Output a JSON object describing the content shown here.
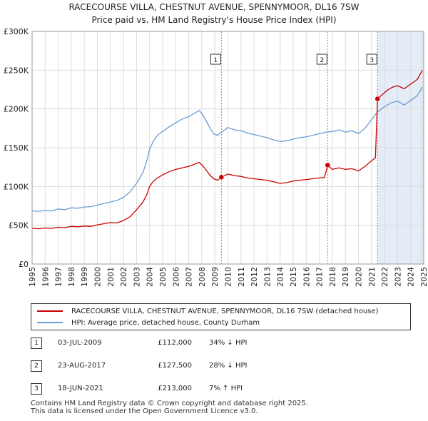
{
  "title": {
    "line1": "RACECOURSE VILLA, CHESTNUT AVENUE, SPENNYMOOR, DL16 7SW",
    "line2": "Price paid vs. HM Land Registry's House Price Index (HPI)"
  },
  "colors": {
    "property": "#cc0000",
    "hpi": "#6a9bd2",
    "shade": "#e4ecf8",
    "grid": "#dddddd",
    "hatch": "#bbbbbb",
    "marker_line": "#e06666"
  },
  "chart_data": {
    "type": "line",
    "title": "Price paid vs. HM Land Registry's House Price Index (HPI)",
    "xlabel": "",
    "ylabel": "",
    "xlim": [
      1995,
      2025
    ],
    "ylim": [
      0,
      300000
    ],
    "y_ticks": [
      {
        "value": 0,
        "label": "£0"
      },
      {
        "value": 50000,
        "label": "£50K"
      },
      {
        "value": 100000,
        "label": "£100K"
      },
      {
        "value": 150000,
        "label": "£150K"
      },
      {
        "value": 200000,
        "label": "£200K"
      },
      {
        "value": 250000,
        "label": "£250K"
      },
      {
        "value": 300000,
        "label": "£300K"
      }
    ],
    "x_ticks": [
      "1995",
      "1996",
      "1997",
      "1998",
      "1999",
      "2000",
      "2001",
      "2002",
      "2003",
      "2004",
      "2005",
      "2006",
      "2007",
      "2008",
      "2009",
      "2010",
      "2011",
      "2012",
      "2013",
      "2014",
      "2015",
      "2016",
      "2017",
      "2018",
      "2019",
      "2020",
      "2021",
      "2022",
      "2023",
      "2024",
      "2025"
    ],
    "grid": true,
    "series": [
      {
        "name": "RACECOURSE VILLA, CHESTNUT AVENUE, SPENNYMOOR, DL16 7SW (detached house)",
        "key": "property",
        "points": [
          [
            1995.0,
            46000
          ],
          [
            1995.5,
            45500
          ],
          [
            1996.0,
            46500
          ],
          [
            1996.5,
            46000
          ],
          [
            1997.0,
            47500
          ],
          [
            1997.5,
            46800
          ],
          [
            1998.0,
            48500
          ],
          [
            1998.5,
            48000
          ],
          [
            1999.0,
            49000
          ],
          [
            1999.5,
            48500
          ],
          [
            2000.0,
            50500
          ],
          [
            2000.5,
            52000
          ],
          [
            2001.0,
            53500
          ],
          [
            2001.5,
            53000
          ],
          [
            2002.0,
            56000
          ],
          [
            2002.5,
            61000
          ],
          [
            2003.0,
            70000
          ],
          [
            2003.5,
            80000
          ],
          [
            2003.8,
            90000
          ],
          [
            2004.0,
            100000
          ],
          [
            2004.3,
            107000
          ],
          [
            2004.6,
            111000
          ],
          [
            2005.0,
            115000
          ],
          [
            2005.5,
            119000
          ],
          [
            2006.0,
            122000
          ],
          [
            2006.5,
            124000
          ],
          [
            2007.0,
            126000
          ],
          [
            2007.5,
            129000
          ],
          [
            2007.8,
            131000
          ],
          [
            2008.0,
            128000
          ],
          [
            2008.3,
            122000
          ],
          [
            2008.6,
            115000
          ],
          [
            2008.9,
            110000
          ],
          [
            2009.2,
            108000
          ],
          [
            2009.5,
            112000
          ],
          [
            2010.0,
            116000
          ],
          [
            2010.5,
            114000
          ],
          [
            2011.0,
            113000
          ],
          [
            2011.5,
            111000
          ],
          [
            2012.0,
            110000
          ],
          [
            2012.5,
            109000
          ],
          [
            2013.0,
            108000
          ],
          [
            2013.5,
            106000
          ],
          [
            2014.0,
            104000
          ],
          [
            2014.5,
            105000
          ],
          [
            2015.0,
            107000
          ],
          [
            2015.5,
            108000
          ],
          [
            2016.0,
            109000
          ],
          [
            2016.5,
            110000
          ],
          [
            2017.0,
            111000
          ],
          [
            2017.4,
            111500
          ],
          [
            2017.64,
            127500
          ],
          [
            2018.0,
            122000
          ],
          [
            2018.5,
            124000
          ],
          [
            2019.0,
            122000
          ],
          [
            2019.5,
            123000
          ],
          [
            2020.0,
            120000
          ],
          [
            2020.5,
            126000
          ],
          [
            2021.0,
            133000
          ],
          [
            2021.3,
            137000
          ],
          [
            2021.46,
            213000
          ],
          [
            2021.8,
            218000
          ],
          [
            2022.2,
            224000
          ],
          [
            2022.6,
            228000
          ],
          [
            2023.0,
            230000
          ],
          [
            2023.5,
            226000
          ],
          [
            2024.0,
            232000
          ],
          [
            2024.5,
            238000
          ],
          [
            2024.9,
            250000
          ]
        ]
      },
      {
        "name": "HPI: Average price, detached house, County Durham",
        "key": "hpi",
        "points": [
          [
            1995.0,
            68500
          ],
          [
            1995.5,
            68000
          ],
          [
            1996.0,
            69000
          ],
          [
            1996.5,
            68500
          ],
          [
            1997.0,
            71000
          ],
          [
            1997.5,
            70000
          ],
          [
            1998.0,
            72500
          ],
          [
            1998.5,
            72000
          ],
          [
            1999.0,
            73500
          ],
          [
            1999.5,
            74000
          ],
          [
            2000.0,
            76000
          ],
          [
            2000.5,
            78000
          ],
          [
            2001.0,
            80000
          ],
          [
            2001.5,
            82000
          ],
          [
            2002.0,
            86000
          ],
          [
            2002.5,
            93000
          ],
          [
            2003.0,
            104000
          ],
          [
            2003.5,
            118000
          ],
          [
            2003.8,
            134000
          ],
          [
            2004.0,
            148000
          ],
          [
            2004.3,
            159000
          ],
          [
            2004.6,
            166000
          ],
          [
            2005.0,
            171000
          ],
          [
            2005.5,
            177000
          ],
          [
            2006.0,
            182000
          ],
          [
            2006.5,
            187000
          ],
          [
            2007.0,
            190000
          ],
          [
            2007.5,
            195000
          ],
          [
            2007.8,
            198000
          ],
          [
            2008.0,
            194000
          ],
          [
            2008.3,
            186000
          ],
          [
            2008.6,
            176000
          ],
          [
            2008.9,
            168000
          ],
          [
            2009.2,
            166000
          ],
          [
            2009.5,
            170000
          ],
          [
            2010.0,
            176000
          ],
          [
            2010.5,
            173000
          ],
          [
            2011.0,
            172000
          ],
          [
            2011.5,
            169000
          ],
          [
            2012.0,
            167000
          ],
          [
            2012.5,
            165000
          ],
          [
            2013.0,
            163000
          ],
          [
            2013.5,
            160000
          ],
          [
            2014.0,
            158000
          ],
          [
            2014.5,
            159000
          ],
          [
            2015.0,
            161000
          ],
          [
            2015.5,
            163000
          ],
          [
            2016.0,
            164000
          ],
          [
            2016.5,
            166000
          ],
          [
            2017.0,
            168000
          ],
          [
            2017.5,
            170000
          ],
          [
            2018.0,
            171000
          ],
          [
            2018.5,
            173000
          ],
          [
            2019.0,
            170000
          ],
          [
            2019.5,
            172000
          ],
          [
            2020.0,
            168000
          ],
          [
            2020.5,
            175000
          ],
          [
            2021.0,
            186000
          ],
          [
            2021.3,
            193000
          ],
          [
            2021.6,
            198000
          ],
          [
            2022.0,
            203000
          ],
          [
            2022.5,
            208000
          ],
          [
            2023.0,
            210000
          ],
          [
            2023.5,
            205000
          ],
          [
            2024.0,
            211000
          ],
          [
            2024.5,
            217000
          ],
          [
            2024.9,
            228000
          ]
        ]
      }
    ],
    "shaded_region": {
      "from": 2021.46,
      "to": 2025,
      "hatched_from": 2024.75
    },
    "sales": [
      {
        "id": "1",
        "year": 2009.5,
        "price": 112000
      },
      {
        "id": "2",
        "year": 2017.64,
        "price": 127500
      },
      {
        "id": "3",
        "year": 2021.46,
        "price": 213000
      }
    ]
  },
  "legend": {
    "property_label": "RACECOURSE VILLA, CHESTNUT AVENUE, SPENNYMOOR, DL16 7SW (detached house)",
    "hpi_label": "HPI: Average price, detached house, County Durham"
  },
  "sales_table": [
    {
      "id": "1",
      "date": "03-JUL-2009",
      "price": "£112,000",
      "hpi": "34% ↓ HPI"
    },
    {
      "id": "2",
      "date": "23-AUG-2017",
      "price": "£127,500",
      "hpi": "28% ↓ HPI"
    },
    {
      "id": "3",
      "date": "18-JUN-2021",
      "price": "£213,000",
      "hpi": "7% ↑ HPI"
    }
  ],
  "footer": {
    "line1": "Contains HM Land Registry data © Crown copyright and database right 2025.",
    "line2": "This data is licensed under the Open Government Licence v3.0."
  }
}
